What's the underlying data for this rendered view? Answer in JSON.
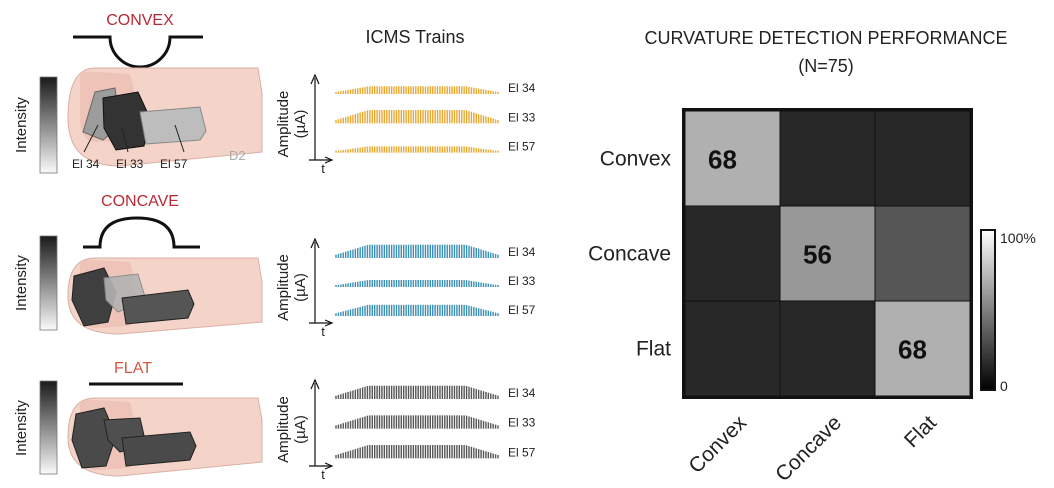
{
  "conditions": [
    {
      "label": "CONVEX",
      "intensity_label": "Intensity",
      "electrode_labels": [
        "El 34",
        "El 33",
        "El 57"
      ],
      "digit_label": "D2",
      "trains": [
        {
          "name": "El 34",
          "amplitude": 0.55
        },
        {
          "name": "El 33",
          "amplitude": 0.95
        },
        {
          "name": "El 57",
          "amplitude": 0.45
        }
      ]
    },
    {
      "label": "CONCAVE",
      "intensity_label": "Intensity",
      "trains": [
        {
          "name": "El 34",
          "amplitude": 0.95
        },
        {
          "name": "El 33",
          "amplitude": 0.5
        },
        {
          "name": "El 57",
          "amplitude": 0.8
        }
      ]
    },
    {
      "label": "FLAT",
      "intensity_label": "Intensity",
      "trains": [
        {
          "name": "El 34",
          "amplitude": 0.95
        },
        {
          "name": "El 33",
          "amplitude": 0.95
        },
        {
          "name": "El 57",
          "amplitude": 0.95
        }
      ]
    }
  ],
  "trains_panel": {
    "title": "ICMS Trains",
    "ylabel_line1": "Amplitude",
    "ylabel_line2": "(µA)",
    "xlabel": "t"
  },
  "colors": {
    "convex": "#e8a832",
    "concave": "#3a8fb4",
    "flat": "#555555",
    "condition_title": "#b72a35",
    "flat_title": "#d4583f",
    "finger_skin": "#f4d3c8",
    "finger_nail": "#ecc0b5"
  },
  "chart_data": {
    "type": "heatmap",
    "title": "CURVATURE DETECTION  PERFORMANCE",
    "subtitle": "(N=75)",
    "rows": [
      "Convex",
      "Concave",
      "Flat"
    ],
    "columns": [
      "Convex",
      "Concave",
      "Flat"
    ],
    "values": [
      [
        68,
        0,
        0
      ],
      [
        0,
        56,
        23
      ],
      [
        0,
        0,
        68
      ]
    ],
    "cell_labels": [
      [
        "68",
        "",
        ""
      ],
      [
        "",
        "56",
        ""
      ],
      [
        "",
        "",
        "68"
      ]
    ],
    "colorbar": {
      "max_label": "100%",
      "min_label": "0",
      "range": [
        0,
        100
      ]
    }
  }
}
